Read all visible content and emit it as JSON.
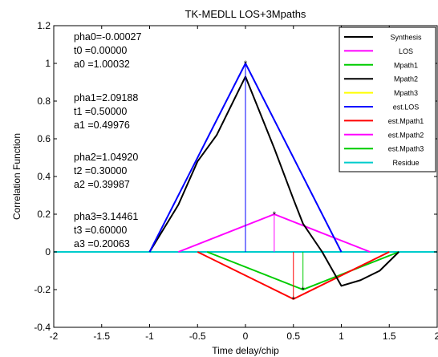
{
  "chart_data": {
    "type": "line",
    "title": "TK-MEDLL LOS+3Mpaths",
    "xlabel": "Time delay/chip",
    "ylabel": "Correlation Function",
    "xlim": [
      -2,
      2
    ],
    "ylim": [
      -0.4,
      1.2
    ],
    "xticks": [
      -2,
      -1.5,
      -1,
      -0.5,
      0,
      0.5,
      1,
      1.5,
      2
    ],
    "xtick_labels": [
      "-2",
      "-1.5",
      "-1",
      "-0.5",
      "0",
      "0.5",
      "1",
      "1.5",
      "2"
    ],
    "yticks": [
      -0.4,
      -0.2,
      0,
      0.2,
      0.4,
      0.6,
      0.8,
      1,
      1.2
    ],
    "ytick_labels": [
      "-0.4",
      "-0.2",
      "0",
      "0.2",
      "0.4",
      "0.6",
      "0.8",
      "1",
      "1.2"
    ],
    "grid": false,
    "legend_position": "top-right",
    "annotations": [
      {
        "line1": "pha0=-0.00027",
        "line2": "t0  =0.00000",
        "line3": "a0  =1.00032"
      },
      {
        "line1": "pha1=2.09188",
        "line2": "t1  =0.50000",
        "line3": "a1  =0.49976"
      },
      {
        "line1": "pha2=1.04920",
        "line2": "t2  =0.30000",
        "line3": "a2  =0.39987"
      },
      {
        "line1": "pha3=3.14461",
        "line2": "t3  =0.60000",
        "line3": "a3  =0.20063"
      }
    ],
    "series": [
      {
        "name": "Synthesis",
        "color": "#000000",
        "style": "line",
        "x": [
          -1,
          -0.7,
          -0.5,
          -0.3,
          0,
          0.3,
          0.5,
          0.6,
          0.8,
          1,
          1.2,
          1.4,
          1.6
        ],
        "y": [
          0,
          0.25,
          0.48,
          0.62,
          0.93,
          0.55,
          0.28,
          0.15,
          0,
          -0.18,
          -0.15,
          -0.1,
          0
        ]
      },
      {
        "name": "LOS",
        "color": "#ff00ff",
        "style": "stem",
        "x": [
          0.3
        ],
        "y": [
          0.2
        ]
      },
      {
        "name": "Mpath1",
        "color": "#00cc00",
        "style": "stem",
        "x": [
          0.6
        ],
        "y": [
          -0.2
        ]
      },
      {
        "name": "Mpath2",
        "color": "#000000",
        "style": "stem",
        "x": [
          0.5
        ],
        "y": [
          -0.25
        ]
      },
      {
        "name": "Mpath3",
        "color": "#ffff00",
        "style": "stem",
        "x": [
          0
        ],
        "y": [
          1
        ]
      },
      {
        "name": "est.LOS",
        "color": "#0000ff",
        "style": "line",
        "x": [
          -1,
          0,
          1
        ],
        "y": [
          0,
          1,
          0
        ]
      },
      {
        "name": "est.Mpath1",
        "color": "#ff0000",
        "style": "line",
        "x": [
          -0.5,
          0.5,
          1.5
        ],
        "y": [
          0,
          -0.25,
          0
        ]
      },
      {
        "name": "est.Mpath2",
        "color": "#ff00ff",
        "style": "line",
        "x": [
          -0.7,
          0.3,
          1.3
        ],
        "y": [
          0,
          0.2,
          0
        ]
      },
      {
        "name": "est.Mpath3",
        "color": "#00cc00",
        "style": "line",
        "x": [
          -0.4,
          0.6,
          1.6
        ],
        "y": [
          0,
          -0.2,
          0
        ]
      },
      {
        "name": "Residue",
        "color": "#00cccc",
        "style": "line",
        "x": [
          -2,
          2
        ],
        "y": [
          0,
          0
        ]
      }
    ],
    "stems": [
      {
        "color": "#0000ff",
        "x": 0,
        "y": 1
      },
      {
        "color": "#ff00ff",
        "x": 0.3,
        "y": 0.2
      },
      {
        "color": "#00cc00",
        "x": 0.6,
        "y": -0.2
      },
      {
        "color": "#ff0000",
        "x": 0.5,
        "y": -0.25
      }
    ]
  }
}
